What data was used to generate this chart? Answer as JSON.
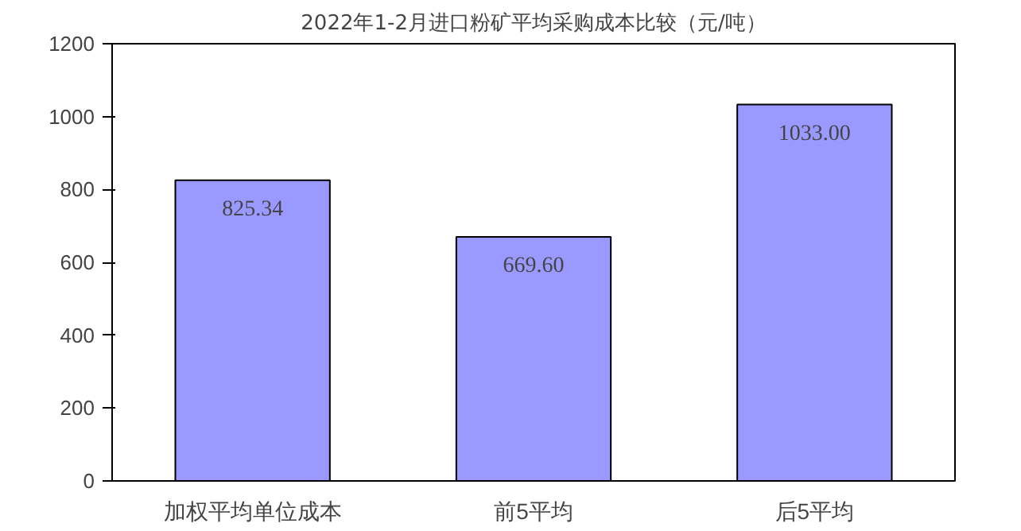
{
  "chart_data": {
    "type": "bar",
    "title": "2022年1-2月进口粉矿平均采购成本比较（元/吨）",
    "categories": [
      "加权平均单位成本",
      "前5平均",
      "后5平均"
    ],
    "values": [
      825.34,
      669.6,
      1033.0
    ],
    "value_labels": [
      "825.34",
      "669.60",
      "1033.00"
    ],
    "color": "#9999ff",
    "ylim": [
      0,
      1200
    ],
    "yticks": [
      0,
      200,
      400,
      600,
      800,
      1000,
      1200
    ],
    "grid": false
  }
}
